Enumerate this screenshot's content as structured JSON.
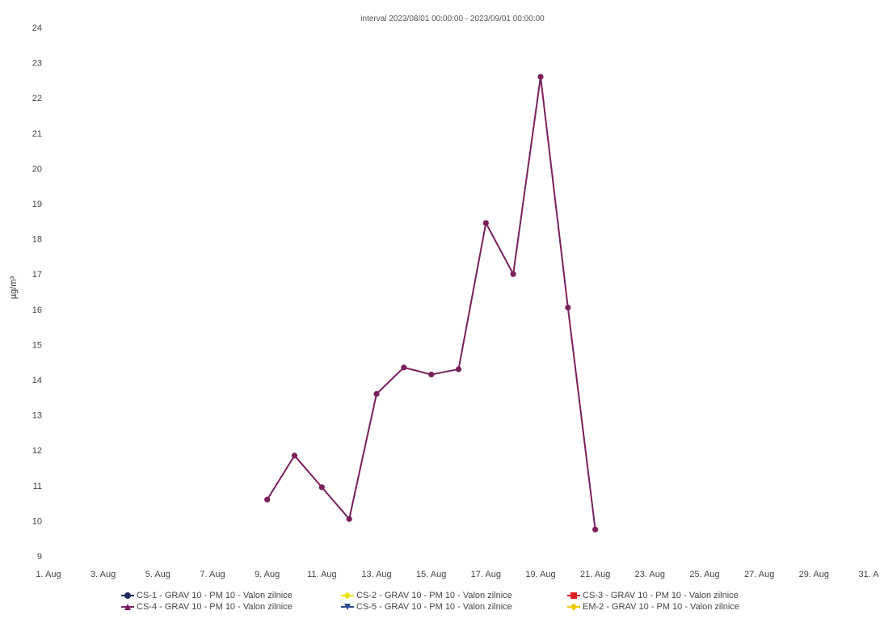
{
  "chart_data": {
    "type": "line",
    "title": "interval 2023/08/01 00:00:00 - 2023/09/01 00:00:00",
    "ylabel": "µg/m³",
    "ylim": [
      9,
      24
    ],
    "yticks": [
      "9",
      "10",
      "11",
      "12",
      "13",
      "14",
      "15",
      "16",
      "17",
      "18",
      "19",
      "20",
      "21",
      "22",
      "23",
      "24"
    ],
    "xlim": [
      1,
      31
    ],
    "xticks": [
      {
        "day": 1,
        "label": "1. Aug"
      },
      {
        "day": 3,
        "label": "3. Aug"
      },
      {
        "day": 5,
        "label": "5. Aug"
      },
      {
        "day": 7,
        "label": "7. Aug"
      },
      {
        "day": 9,
        "label": "9. Aug"
      },
      {
        "day": 11,
        "label": "11. Aug"
      },
      {
        "day": 13,
        "label": "13. Aug"
      },
      {
        "day": 15,
        "label": "15. Aug"
      },
      {
        "day": 17,
        "label": "17. Aug"
      },
      {
        "day": 19,
        "label": "19. Aug"
      },
      {
        "day": 21,
        "label": "21. Aug"
      },
      {
        "day": 23,
        "label": "23. Aug"
      },
      {
        "day": 25,
        "label": "25. Aug"
      },
      {
        "day": 27,
        "label": "27. Aug"
      },
      {
        "day": 29,
        "label": "29. Aug"
      },
      {
        "day": 31,
        "label": "31. A"
      }
    ],
    "grid": false,
    "legend_position": "bottom",
    "series": [
      {
        "name": "CS-4 - GRAV 10 - PM 10 - Valon zilnice",
        "color": "#7a1f5c",
        "points": [
          {
            "day": 9,
            "value": 10.6
          },
          {
            "day": 10,
            "value": 11.85
          },
          {
            "day": 11,
            "value": 10.95
          },
          {
            "day": 12,
            "value": 10.05
          },
          {
            "day": 13,
            "value": 13.6
          },
          {
            "day": 14,
            "value": 14.35
          },
          {
            "day": 15,
            "value": 14.15
          },
          {
            "day": 16,
            "value": 14.3
          },
          {
            "day": 17,
            "value": 18.45
          },
          {
            "day": 18,
            "value": 17.0
          },
          {
            "day": 19,
            "value": 22.6
          },
          {
            "day": 20,
            "value": 16.05
          },
          {
            "day": 21,
            "value": 9.75
          }
        ]
      }
    ]
  },
  "legend": [
    {
      "label": "CS-1 - GRAV 10 - PM 10 - Valon zilnice",
      "color": "#1f2a5c",
      "shape": "circle"
    },
    {
      "label": "CS-2 - GRAV 10 - PM 10 - Valon zilnice",
      "color": "#e6e600",
      "shape": "diamond"
    },
    {
      "label": "CS-3 - GRAV 10 - PM 10 - Valon zilnice",
      "color": "#d92020",
      "shape": "square"
    },
    {
      "label": "CS-4 - GRAV 10 - PM 10 - Valon zilnice",
      "color": "#7a1f5c",
      "shape": "triangle"
    },
    {
      "label": "CS-5 - GRAV 10 - PM 10 - Valon zilnice",
      "color": "#2a4a8c",
      "shape": "triangle-down"
    },
    {
      "label": "EM-2 - GRAV 10 - PM 10 - Valon zilnice",
      "color": "#f0c800",
      "shape": "diamond"
    }
  ]
}
